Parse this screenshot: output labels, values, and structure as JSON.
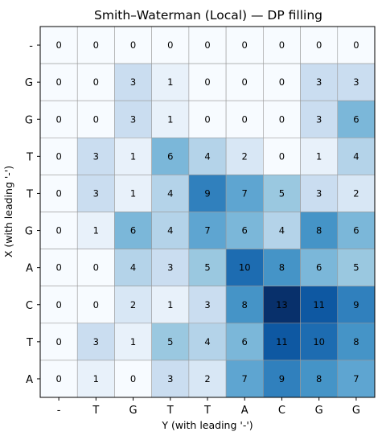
{
  "chart_data": {
    "type": "heatmap",
    "title": "Smith–Waterman (Local) — DP filling",
    "xlabel": "Y (with leading '-')",
    "ylabel": "X (with leading '-')",
    "x_tick_labels": [
      "-",
      "T",
      "G",
      "T",
      "T",
      "A",
      "C",
      "G",
      "G"
    ],
    "y_tick_labels": [
      "-",
      "G",
      "G",
      "T",
      "T",
      "G",
      "A",
      "C",
      "T",
      "A"
    ],
    "colormap": "Blues",
    "value_range": [
      0,
      13
    ],
    "grid": true,
    "values": [
      [
        0,
        0,
        0,
        0,
        0,
        0,
        0,
        0,
        0
      ],
      [
        0,
        0,
        3,
        1,
        0,
        0,
        0,
        3,
        3
      ],
      [
        0,
        0,
        3,
        1,
        0,
        0,
        0,
        3,
        6
      ],
      [
        0,
        3,
        1,
        6,
        4,
        2,
        0,
        1,
        4
      ],
      [
        0,
        3,
        1,
        4,
        9,
        7,
        5,
        3,
        2
      ],
      [
        0,
        1,
        6,
        4,
        7,
        6,
        4,
        8,
        6
      ],
      [
        0,
        0,
        4,
        3,
        5,
        10,
        8,
        6,
        5
      ],
      [
        0,
        0,
        2,
        1,
        3,
        8,
        13,
        11,
        9
      ],
      [
        0,
        3,
        1,
        5,
        4,
        6,
        11,
        10,
        8
      ],
      [
        0,
        1,
        0,
        3,
        2,
        7,
        9,
        8,
        7
      ]
    ]
  }
}
